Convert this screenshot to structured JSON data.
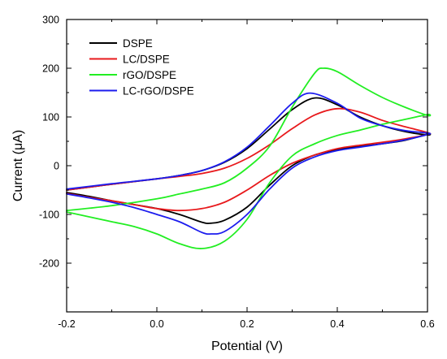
{
  "chart_data": {
    "type": "line",
    "xlabel": "Potential (V)",
    "ylabel": "Current (μA)",
    "xlim": [
      -0.2,
      0.6
    ],
    "ylim": [
      -300,
      300
    ],
    "xticks": [
      -0.2,
      0.0,
      0.2,
      0.4,
      0.6
    ],
    "xtick_labels": [
      "-0.2",
      "0.0",
      "0.2",
      "0.4",
      "0.6"
    ],
    "yticks": [
      -200,
      -100,
      0,
      100,
      200,
      300
    ],
    "ytick_labels": [
      "-200",
      "-100",
      "0",
      "100",
      "200",
      "300"
    ],
    "grid": false,
    "legend_position": "top-left",
    "series": [
      {
        "name": "DSPE",
        "color": "#000000",
        "x": [
          -0.2,
          -0.1,
          0.0,
          0.05,
          0.1,
          0.15,
          0.2,
          0.25,
          0.3,
          0.35,
          0.4,
          0.45,
          0.5,
          0.55,
          0.6,
          0.6,
          0.55,
          0.5,
          0.45,
          0.4,
          0.35,
          0.3,
          0.25,
          0.2,
          0.15,
          0.12,
          0.1,
          0.05,
          0.0,
          -0.05,
          -0.1,
          -0.15,
          -0.2
        ],
        "y": [
          -50,
          -38,
          -27,
          -20,
          -10,
          7,
          35,
          75,
          115,
          139,
          125,
          100,
          82,
          70,
          63,
          65,
          52,
          45,
          40,
          33,
          22,
          0,
          -40,
          -85,
          -112,
          -118,
          -116,
          -100,
          -88,
          -80,
          -72,
          -63,
          -55
        ]
      },
      {
        "name": "LC/DSPE",
        "color": "#e8191c",
        "x": [
          -0.2,
          -0.1,
          0.0,
          0.05,
          0.1,
          0.15,
          0.2,
          0.25,
          0.3,
          0.35,
          0.4,
          0.45,
          0.5,
          0.55,
          0.6,
          0.6,
          0.55,
          0.5,
          0.45,
          0.4,
          0.35,
          0.3,
          0.25,
          0.2,
          0.15,
          0.1,
          0.05,
          0.0,
          -0.05,
          -0.1,
          -0.15,
          -0.2
        ],
        "y": [
          -50,
          -38,
          -27,
          -22,
          -16,
          -5,
          15,
          43,
          76,
          104,
          117,
          110,
          93,
          80,
          68,
          64,
          55,
          48,
          42,
          35,
          22,
          5,
          -20,
          -50,
          -75,
          -88,
          -92,
          -88,
          -80,
          -72,
          -65,
          -57
        ]
      },
      {
        "name": "rGO/DSPE",
        "color": "#22ee22",
        "x": [
          -0.2,
          -0.1,
          0.0,
          0.05,
          0.1,
          0.15,
          0.2,
          0.25,
          0.3,
          0.35,
          0.37,
          0.4,
          0.45,
          0.5,
          0.55,
          0.6,
          0.6,
          0.55,
          0.5,
          0.45,
          0.4,
          0.35,
          0.3,
          0.25,
          0.2,
          0.15,
          0.1,
          0.05,
          0.0,
          -0.05,
          -0.1,
          -0.15,
          -0.2
        ],
        "y": [
          -92,
          -82,
          -68,
          -58,
          -48,
          -35,
          -5,
          40,
          120,
          190,
          200,
          193,
          165,
          140,
          120,
          103,
          105,
          95,
          85,
          73,
          62,
          45,
          20,
          -35,
          -110,
          -155,
          -170,
          -160,
          -140,
          -125,
          -115,
          -105,
          -95
        ]
      },
      {
        "name": "LC-rGO/DSPE",
        "color": "#1c1cee",
        "x": [
          -0.2,
          -0.1,
          0.0,
          0.05,
          0.1,
          0.15,
          0.2,
          0.25,
          0.3,
          0.34,
          0.4,
          0.45,
          0.5,
          0.55,
          0.6,
          0.6,
          0.55,
          0.5,
          0.45,
          0.4,
          0.35,
          0.3,
          0.25,
          0.2,
          0.15,
          0.12,
          0.1,
          0.05,
          0.0,
          -0.05,
          -0.1,
          -0.15,
          -0.2
        ],
        "y": [
          -48,
          -37,
          -27,
          -20,
          -10,
          8,
          38,
          82,
          128,
          149,
          128,
          98,
          82,
          72,
          67,
          64,
          53,
          45,
          38,
          31,
          18,
          -5,
          -48,
          -100,
          -135,
          -140,
          -137,
          -115,
          -100,
          -86,
          -75,
          -66,
          -58
        ]
      }
    ]
  }
}
